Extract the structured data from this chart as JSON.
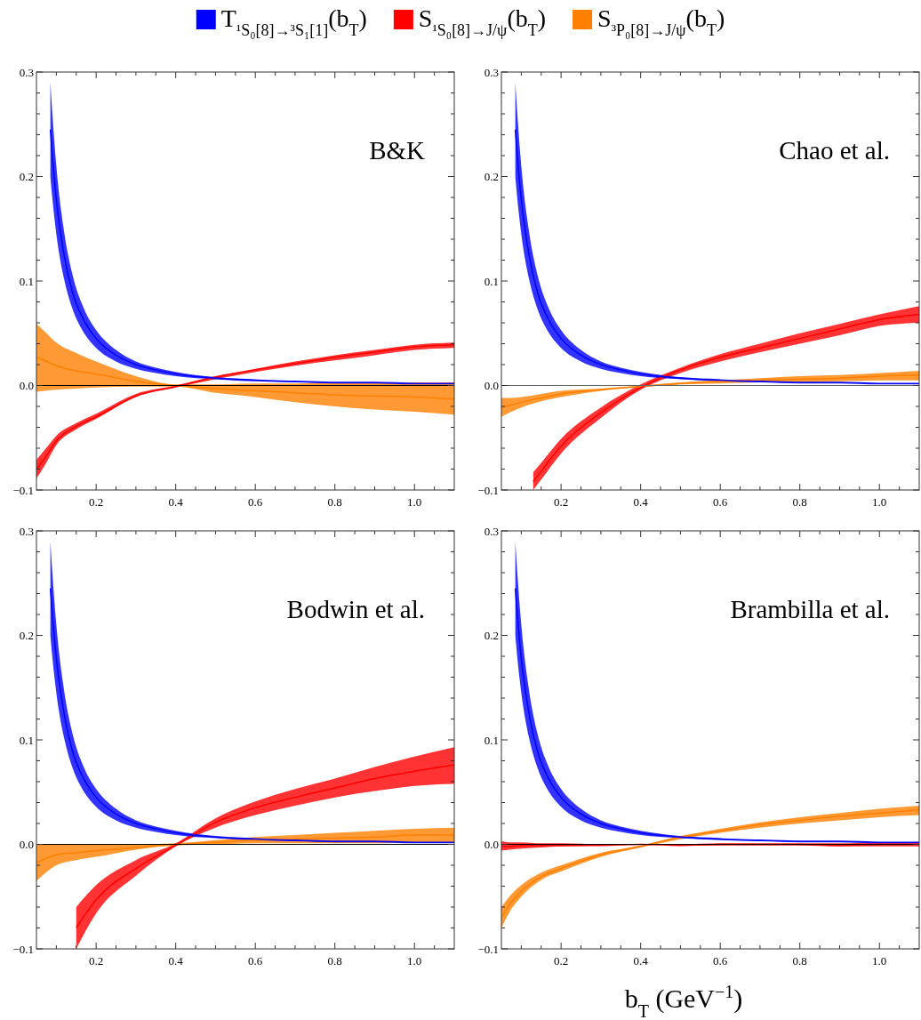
{
  "chart_data": [
    {
      "type": "line",
      "legend": "top",
      "annotations": [
        "B&K"
      ],
      "xlim": [
        0.05,
        1.1
      ],
      "ylim": [
        -0.1,
        0.3
      ],
      "xticks": [
        {
          "value": 0.1,
          "label": null
        },
        {
          "value": 0.15,
          "label": null
        },
        0.2,
        {
          "value": 0.25,
          "label": null
        },
        {
          "value": 0.3,
          "label": null
        },
        {
          "value": 0.35,
          "label": null
        },
        0.4,
        {
          "value": 0.45,
          "label": null
        },
        {
          "value": 0.5,
          "label": null
        },
        {
          "value": 0.55,
          "label": null
        },
        0.6,
        {
          "value": 0.65,
          "label": null
        },
        {
          "value": 0.7,
          "label": null
        },
        {
          "value": 0.75,
          "label": null
        },
        0.8,
        {
          "value": 0.85,
          "label": null
        },
        {
          "value": 0.9,
          "label": null
        },
        {
          "value": 0.95,
          "label": null
        },
        {
          "value": 1,
          "label": "1.0"
        },
        {
          "value": 1.05,
          "label": null
        }
      ],
      "yticks": [
        {
          "value": -0.1,
          "label": "−0.1"
        },
        {
          "value": -0.08,
          "label": null
        },
        {
          "value": -0.06,
          "label": null
        },
        {
          "value": -0.04,
          "label": null
        },
        {
          "value": -0.02,
          "label": null
        },
        {
          "value": 0,
          "label": "0.0"
        },
        {
          "value": 0.02,
          "label": null
        },
        {
          "value": 0.04,
          "label": null
        },
        {
          "value": 0.06,
          "label": null
        },
        {
          "value": 0.08,
          "label": null
        },
        0.1,
        {
          "value": 0.12,
          "label": null
        },
        {
          "value": 0.14,
          "label": null
        },
        {
          "value": 0.16,
          "label": null
        },
        {
          "value": 0.18,
          "label": null
        },
        0.2,
        {
          "value": 0.22,
          "label": null
        },
        {
          "value": 0.24,
          "label": null
        },
        {
          "value": 0.26,
          "label": null
        },
        {
          "value": 0.28,
          "label": null
        },
        0.3
      ],
      "ref_lines": [
        {
          "axis": "y",
          "value": 0,
          "color": "#000000"
        }
      ],
      "series": [
        {
          "name": "T$_{¹S₀[8]→³S₁[1]}$(b$_{T}$)",
          "color": "#0000ff",
          "x": [
            0.085,
            0.09,
            0.1,
            0.12,
            0.14,
            0.17,
            0.2,
            0.25,
            0.3,
            0.35,
            0.4,
            0.5,
            0.6,
            0.7,
            0.8,
            0.9,
            1.0,
            1.1
          ],
          "values": [
            0.245,
            0.22,
            0.178,
            0.124,
            0.09,
            0.062,
            0.045,
            0.029,
            0.02,
            0.015,
            0.011,
            0.007,
            0.005,
            0.004,
            0.003,
            0.003,
            0.002,
            0.002
          ],
          "upper": [
            0.29,
            0.26,
            0.21,
            0.146,
            0.107,
            0.073,
            0.053,
            0.034,
            0.023,
            0.017,
            0.013,
            0.008,
            0.006,
            0.004,
            0.003,
            0.003,
            0.002,
            0.002
          ],
          "lower": [
            0.2,
            0.179,
            0.145,
            0.101,
            0.074,
            0.05,
            0.036,
            0.023,
            0.016,
            0.012,
            0.009,
            0.006,
            0.004,
            0.003,
            0.002,
            0.002,
            0.001,
            0.001
          ]
        },
        {
          "name": "S$_{¹S₀[8]→J/ψ}$(b$_{T}$)",
          "color": "#ff0000",
          "x": [
            0.05,
            0.07,
            0.1,
            0.15,
            0.2,
            0.3,
            0.4,
            0.5,
            0.6,
            0.7,
            0.8,
            0.9,
            1.0,
            1.1
          ],
          "values": [
            -0.08,
            -0.07,
            -0.053,
            -0.039,
            -0.03,
            -0.01,
            -0.001,
            0.008,
            0.015,
            0.021,
            0.027,
            0.032,
            0.037,
            0.039
          ],
          "upper": [
            -0.071,
            -0.062,
            -0.048,
            -0.036,
            -0.027,
            -0.008,
            0.0,
            0.009,
            0.016,
            0.023,
            0.029,
            0.034,
            0.039,
            0.041
          ],
          "lower": [
            -0.089,
            -0.077,
            -0.057,
            -0.042,
            -0.032,
            -0.011,
            -0.002,
            0.006,
            0.013,
            0.019,
            0.024,
            0.029,
            0.034,
            0.036
          ]
        },
        {
          "name": "S$_{³P₀[8]→J/ψ}$(b$_{T}$)",
          "color": "#ff8000",
          "x": [
            0.05,
            0.07,
            0.1,
            0.15,
            0.2,
            0.3,
            0.4,
            0.5,
            0.6,
            0.7,
            0.8,
            0.9,
            1.0,
            1.1
          ],
          "values": [
            0.027,
            0.024,
            0.019,
            0.014,
            0.011,
            0.004,
            0,
            -0.003,
            -0.005,
            -0.007,
            -0.009,
            -0.01,
            -0.011,
            -0.013
          ],
          "upper": [
            0.059,
            0.052,
            0.041,
            0.031,
            0.023,
            0.009,
            0.001,
            0.001,
            0.002,
            0.002,
            0.003,
            0.003,
            0.003,
            0.003
          ],
          "lower": [
            -0.006,
            -0.005,
            -0.004,
            -0.003,
            -0.002,
            -0.001,
            -0.001,
            -0.007,
            -0.011,
            -0.016,
            -0.02,
            -0.023,
            -0.025,
            -0.028
          ]
        }
      ]
    },
    {
      "type": "line",
      "annotations": [
        "Chao et al."
      ],
      "xlim": [
        0.05,
        1.1
      ],
      "ylim": [
        -0.1,
        0.3
      ],
      "xticks": [
        {
          "value": 0.1,
          "label": null
        },
        {
          "value": 0.15,
          "label": null
        },
        0.2,
        {
          "value": 0.25,
          "label": null
        },
        {
          "value": 0.3,
          "label": null
        },
        {
          "value": 0.35,
          "label": null
        },
        0.4,
        {
          "value": 0.45,
          "label": null
        },
        {
          "value": 0.5,
          "label": null
        },
        {
          "value": 0.55,
          "label": null
        },
        0.6,
        {
          "value": 0.65,
          "label": null
        },
        {
          "value": 0.7,
          "label": null
        },
        {
          "value": 0.75,
          "label": null
        },
        0.8,
        {
          "value": 0.85,
          "label": null
        },
        {
          "value": 0.9,
          "label": null
        },
        {
          "value": 0.95,
          "label": null
        },
        {
          "value": 1,
          "label": "1.0"
        },
        {
          "value": 1.05,
          "label": null
        }
      ],
      "yticks": [
        {
          "value": -0.1,
          "label": "−0.1"
        },
        {
          "value": -0.08,
          "label": null
        },
        {
          "value": -0.06,
          "label": null
        },
        {
          "value": -0.04,
          "label": null
        },
        {
          "value": -0.02,
          "label": null
        },
        {
          "value": 0,
          "label": "0.0"
        },
        {
          "value": 0.02,
          "label": null
        },
        {
          "value": 0.04,
          "label": null
        },
        {
          "value": 0.06,
          "label": null
        },
        {
          "value": 0.08,
          "label": null
        },
        0.1,
        {
          "value": 0.12,
          "label": null
        },
        {
          "value": 0.14,
          "label": null
        },
        {
          "value": 0.16,
          "label": null
        },
        {
          "value": 0.18,
          "label": null
        },
        0.2,
        {
          "value": 0.22,
          "label": null
        },
        {
          "value": 0.24,
          "label": null
        },
        {
          "value": 0.26,
          "label": null
        },
        {
          "value": 0.28,
          "label": null
        },
        0.3
      ],
      "ref_lines": [
        {
          "axis": "y",
          "value": 0,
          "color": "#666666"
        }
      ],
      "series": [
        {
          "color": "#0000ff",
          "x": [
            0.085,
            0.09,
            0.1,
            0.12,
            0.14,
            0.17,
            0.2,
            0.25,
            0.3,
            0.35,
            0.4,
            0.5,
            0.6,
            0.7,
            0.8,
            0.9,
            1.0,
            1.1
          ],
          "values": [
            0.245,
            0.22,
            0.178,
            0.124,
            0.09,
            0.062,
            0.045,
            0.029,
            0.02,
            0.015,
            0.011,
            0.007,
            0.005,
            0.004,
            0.003,
            0.003,
            0.002,
            0.002
          ],
          "upper": [
            0.29,
            0.26,
            0.21,
            0.146,
            0.107,
            0.073,
            0.053,
            0.034,
            0.023,
            0.017,
            0.013,
            0.008,
            0.006,
            0.004,
            0.003,
            0.003,
            0.002,
            0.002
          ],
          "lower": [
            0.2,
            0.179,
            0.145,
            0.101,
            0.074,
            0.05,
            0.036,
            0.023,
            0.016,
            0.012,
            0.009,
            0.006,
            0.004,
            0.003,
            0.002,
            0.002,
            0.001,
            0.001
          ]
        },
        {
          "color": "#ff0000",
          "x": [
            0.13,
            0.15,
            0.2,
            0.3,
            0.4,
            0.5,
            0.6,
            0.7,
            0.8,
            0.9,
            1.0,
            1.1
          ],
          "values": [
            -0.092,
            -0.082,
            -0.058,
            -0.026,
            -0.002,
            0.015,
            0.027,
            0.036,
            0.045,
            0.054,
            0.063,
            0.068
          ],
          "upper": [
            -0.083,
            -0.074,
            -0.051,
            -0.021,
            0.001,
            0.017,
            0.03,
            0.04,
            0.05,
            0.059,
            0.068,
            0.076
          ],
          "lower": [
            -0.1,
            -0.09,
            -0.065,
            -0.031,
            -0.004,
            0.012,
            0.023,
            0.032,
            0.04,
            0.048,
            0.057,
            0.06
          ]
        },
        {
          "color": "#ff8000",
          "x": [
            0.05,
            0.07,
            0.1,
            0.15,
            0.2,
            0.3,
            0.4,
            0.5,
            0.6,
            0.7,
            0.8,
            0.9,
            1.0,
            1.1
          ],
          "values": [
            -0.021,
            -0.019,
            -0.016,
            -0.012,
            -0.008,
            -0.004,
            -0.001,
            0.002,
            0.004,
            0.005,
            0.006,
            0.007,
            0.009,
            0.01
          ],
          "upper": [
            -0.012,
            -0.012,
            -0.011,
            -0.008,
            -0.005,
            -0.003,
            0.0,
            0.003,
            0.005,
            0.007,
            0.009,
            0.01,
            0.012,
            0.014
          ],
          "lower": [
            -0.03,
            -0.026,
            -0.021,
            -0.015,
            -0.011,
            -0.005,
            -0.001,
            0.001,
            0.002,
            0.003,
            0.003,
            0.004,
            0.005,
            0.005
          ]
        }
      ]
    },
    {
      "type": "line",
      "annotations": [
        "Bodwin et al."
      ],
      "xlim": [
        0.05,
        1.1
      ],
      "ylim": [
        -0.1,
        0.3
      ],
      "xticks": [
        {
          "value": 0.1,
          "label": null
        },
        {
          "value": 0.15,
          "label": null
        },
        0.2,
        {
          "value": 0.25,
          "label": null
        },
        {
          "value": 0.3,
          "label": null
        },
        {
          "value": 0.35,
          "label": null
        },
        0.4,
        {
          "value": 0.45,
          "label": null
        },
        {
          "value": 0.5,
          "label": null
        },
        {
          "value": 0.55,
          "label": null
        },
        0.6,
        {
          "value": 0.65,
          "label": null
        },
        {
          "value": 0.7,
          "label": null
        },
        {
          "value": 0.75,
          "label": null
        },
        0.8,
        {
          "value": 0.85,
          "label": null
        },
        {
          "value": 0.9,
          "label": null
        },
        {
          "value": 0.95,
          "label": null
        },
        {
          "value": 1,
          "label": "1.0"
        },
        {
          "value": 1.05,
          "label": null
        }
      ],
      "yticks": [
        {
          "value": -0.1,
          "label": "−0.1"
        },
        {
          "value": -0.08,
          "label": null
        },
        {
          "value": -0.06,
          "label": null
        },
        {
          "value": -0.04,
          "label": null
        },
        {
          "value": -0.02,
          "label": null
        },
        {
          "value": 0,
          "label": "0.0"
        },
        {
          "value": 0.02,
          "label": null
        },
        {
          "value": 0.04,
          "label": null
        },
        {
          "value": 0.06,
          "label": null
        },
        {
          "value": 0.08,
          "label": null
        },
        0.1,
        {
          "value": 0.12,
          "label": null
        },
        {
          "value": 0.14,
          "label": null
        },
        {
          "value": 0.16,
          "label": null
        },
        {
          "value": 0.18,
          "label": null
        },
        0.2,
        {
          "value": 0.22,
          "label": null
        },
        {
          "value": 0.24,
          "label": null
        },
        {
          "value": 0.26,
          "label": null
        },
        {
          "value": 0.28,
          "label": null
        },
        0.3
      ],
      "ref_lines": [
        {
          "axis": "y",
          "value": 0,
          "color": "#000000"
        }
      ],
      "series": [
        {
          "color": "#0000ff",
          "x": [
            0.085,
            0.09,
            0.1,
            0.12,
            0.14,
            0.17,
            0.2,
            0.25,
            0.3,
            0.35,
            0.4,
            0.5,
            0.6,
            0.7,
            0.8,
            0.9,
            1.0,
            1.1
          ],
          "values": [
            0.245,
            0.22,
            0.178,
            0.124,
            0.09,
            0.062,
            0.045,
            0.029,
            0.02,
            0.015,
            0.011,
            0.007,
            0.005,
            0.004,
            0.003,
            0.003,
            0.002,
            0.002
          ],
          "upper": [
            0.29,
            0.26,
            0.21,
            0.146,
            0.107,
            0.073,
            0.053,
            0.034,
            0.023,
            0.017,
            0.013,
            0.008,
            0.006,
            0.004,
            0.003,
            0.003,
            0.002,
            0.002
          ],
          "lower": [
            0.2,
            0.179,
            0.145,
            0.101,
            0.074,
            0.05,
            0.036,
            0.023,
            0.016,
            0.012,
            0.009,
            0.006,
            0.004,
            0.003,
            0.002,
            0.002,
            0.001,
            0.001
          ]
        },
        {
          "color": "#ff0000",
          "x": [
            0.15,
            0.2,
            0.3,
            0.4,
            0.5,
            0.6,
            0.7,
            0.8,
            0.9,
            1.0,
            1.1
          ],
          "values": [
            -0.08,
            -0.053,
            -0.023,
            -0.001,
            0.021,
            0.035,
            0.045,
            0.054,
            0.063,
            0.07,
            0.076
          ],
          "upper": [
            -0.06,
            -0.039,
            -0.015,
            0.001,
            0.025,
            0.041,
            0.053,
            0.063,
            0.074,
            0.084,
            0.093
          ],
          "lower": [
            -0.1,
            -0.066,
            -0.03,
            -0.002,
            0.016,
            0.028,
            0.037,
            0.045,
            0.051,
            0.056,
            0.058
          ]
        },
        {
          "color": "#ff8000",
          "x": [
            0.05,
            0.07,
            0.1,
            0.15,
            0.2,
            0.3,
            0.4,
            0.5,
            0.6,
            0.7,
            0.8,
            0.9,
            1.0,
            1.1
          ],
          "values": [
            -0.018,
            -0.014,
            -0.01,
            -0.008,
            -0.006,
            -0.003,
            0,
            0.002,
            0.004,
            0.005,
            0.006,
            0.007,
            0.009,
            0.009
          ],
          "upper": [
            0,
            0,
            0,
            0,
            0,
            0,
            0.001,
            0.004,
            0.007,
            0.009,
            0.011,
            0.013,
            0.015,
            0.016
          ],
          "lower": [
            -0.035,
            -0.028,
            -0.02,
            -0.015,
            -0.012,
            -0.005,
            -0.001,
            0,
            0.001,
            0.001,
            0.001,
            0.001,
            0.002,
            0.002
          ]
        }
      ]
    },
    {
      "type": "line",
      "annotations": [
        "Brambilla et al."
      ],
      "xlabel": "b$_{T}$ (GeV$^{−1}$)",
      "xlim": [
        0.05,
        1.1
      ],
      "ylim": [
        -0.1,
        0.3
      ],
      "xticks": [
        {
          "value": 0.1,
          "label": null
        },
        {
          "value": 0.15,
          "label": null
        },
        0.2,
        {
          "value": 0.25,
          "label": null
        },
        {
          "value": 0.3,
          "label": null
        },
        {
          "value": 0.35,
          "label": null
        },
        0.4,
        {
          "value": 0.45,
          "label": null
        },
        {
          "value": 0.5,
          "label": null
        },
        {
          "value": 0.55,
          "label": null
        },
        0.6,
        {
          "value": 0.65,
          "label": null
        },
        {
          "value": 0.7,
          "label": null
        },
        {
          "value": 0.75,
          "label": null
        },
        0.8,
        {
          "value": 0.85,
          "label": null
        },
        {
          "value": 0.9,
          "label": null
        },
        {
          "value": 0.95,
          "label": null
        },
        {
          "value": 1,
          "label": "1.0"
        },
        {
          "value": 1.05,
          "label": null
        }
      ],
      "yticks": [
        {
          "value": -0.1,
          "label": "−0.1"
        },
        {
          "value": -0.08,
          "label": null
        },
        {
          "value": -0.06,
          "label": null
        },
        {
          "value": -0.04,
          "label": null
        },
        {
          "value": -0.02,
          "label": null
        },
        {
          "value": 0,
          "label": "0.0"
        },
        {
          "value": 0.02,
          "label": null
        },
        {
          "value": 0.04,
          "label": null
        },
        {
          "value": 0.06,
          "label": null
        },
        {
          "value": 0.08,
          "label": null
        },
        0.1,
        {
          "value": 0.12,
          "label": null
        },
        {
          "value": 0.14,
          "label": null
        },
        {
          "value": 0.16,
          "label": null
        },
        {
          "value": 0.18,
          "label": null
        },
        0.2,
        {
          "value": 0.22,
          "label": null
        },
        {
          "value": 0.24,
          "label": null
        },
        {
          "value": 0.26,
          "label": null
        },
        {
          "value": 0.28,
          "label": null
        },
        0.3
      ],
      "ref_lines": [
        {
          "axis": "y",
          "value": 0,
          "color": "#000000"
        }
      ],
      "series": [
        {
          "color": "#0000ff",
          "x": [
            0.085,
            0.09,
            0.1,
            0.12,
            0.14,
            0.17,
            0.2,
            0.25,
            0.3,
            0.35,
            0.4,
            0.5,
            0.6,
            0.7,
            0.8,
            0.9,
            1.0,
            1.1
          ],
          "values": [
            0.245,
            0.22,
            0.178,
            0.124,
            0.09,
            0.062,
            0.045,
            0.029,
            0.02,
            0.015,
            0.011,
            0.007,
            0.005,
            0.004,
            0.003,
            0.003,
            0.002,
            0.002
          ],
          "upper": [
            0.29,
            0.26,
            0.21,
            0.146,
            0.107,
            0.073,
            0.053,
            0.034,
            0.023,
            0.017,
            0.013,
            0.008,
            0.006,
            0.004,
            0.003,
            0.003,
            0.002,
            0.002
          ],
          "lower": [
            0.2,
            0.179,
            0.145,
            0.101,
            0.074,
            0.05,
            0.036,
            0.023,
            0.016,
            0.012,
            0.009,
            0.006,
            0.004,
            0.003,
            0.002,
            0.002,
            0.001,
            0.001
          ]
        },
        {
          "color": "#ff0000",
          "x": [
            0.05,
            0.07,
            0.1,
            0.15,
            0.2,
            0.3,
            0.4,
            0.5,
            0.6,
            0.7,
            0.8,
            0.9,
            1.0,
            1.1
          ],
          "values": [
            -0.002,
            -0.002,
            -0.001,
            -0.001,
            -0.001,
            -0.001,
            0,
            -0.001,
            0,
            0,
            0,
            -0.001,
            0,
            0
          ],
          "upper": [
            0.003,
            0.002,
            0.002,
            0.001,
            0.001,
            0,
            0,
            0,
            0.001,
            0.001,
            0.001,
            0.001,
            0.002,
            0.002
          ],
          "lower": [
            -0.006,
            -0.005,
            -0.004,
            -0.003,
            -0.002,
            -0.001,
            0,
            -0.001,
            -0.001,
            -0.001,
            -0.001,
            -0.002,
            -0.002,
            -0.002
          ]
        },
        {
          "color": "#ff8000",
          "x": [
            0.05,
            0.07,
            0.1,
            0.15,
            0.2,
            0.3,
            0.4,
            0.5,
            0.6,
            0.7,
            0.8,
            0.9,
            1.0,
            1.1
          ],
          "values": [
            -0.07,
            -0.058,
            -0.045,
            -0.031,
            -0.023,
            -0.01,
            -0.002,
            0.007,
            0.013,
            0.019,
            0.023,
            0.027,
            0.03,
            0.033
          ],
          "upper": [
            -0.06,
            -0.05,
            -0.039,
            -0.027,
            -0.02,
            -0.008,
            -0.001,
            0.008,
            0.015,
            0.021,
            0.026,
            0.03,
            0.034,
            0.037
          ],
          "lower": [
            -0.08,
            -0.065,
            -0.05,
            -0.034,
            -0.026,
            -0.012,
            -0.003,
            0.005,
            0.011,
            0.016,
            0.02,
            0.023,
            0.026,
            0.028
          ]
        }
      ]
    }
  ]
}
